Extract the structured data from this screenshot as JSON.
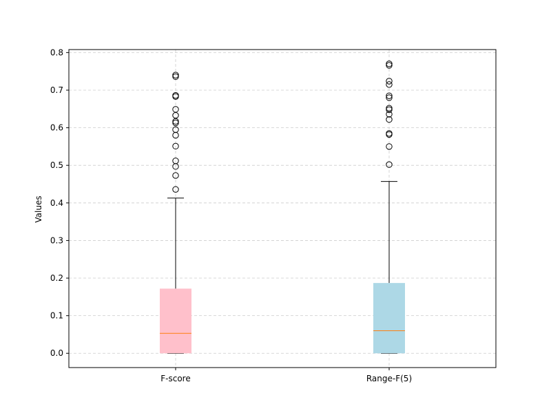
{
  "chart_data": {
    "type": "box",
    "title": "",
    "xlabel": "",
    "ylabel": "Values",
    "ylim": [
      -0.038,
      0.808
    ],
    "yticks": [
      0.0,
      0.1,
      0.2,
      0.3,
      0.4,
      0.5,
      0.6,
      0.7,
      0.8
    ],
    "ytick_labels": [
      "0.0",
      "0.1",
      "0.2",
      "0.3",
      "0.4",
      "0.5",
      "0.6",
      "0.7",
      "0.8"
    ],
    "grid": true,
    "grid_style": "dashed",
    "categories": [
      "F-score",
      "Range-F(5)"
    ],
    "series": [
      {
        "category": "F-score",
        "color": "#ffc0cb",
        "median_color": "#ff7f0e",
        "whisker_low": 0.0,
        "q1": 0.0,
        "median": 0.053,
        "q3": 0.172,
        "whisker_high": 0.413,
        "outliers": [
          0.436,
          0.473,
          0.497,
          0.512,
          0.551,
          0.58,
          0.595,
          0.613,
          0.617,
          0.633,
          0.649,
          0.683,
          0.686,
          0.736,
          0.74
        ]
      },
      {
        "category": "Range-F(5)",
        "color": "#add8e6",
        "median_color": "#ff7f0e",
        "whisker_low": 0.0,
        "q1": 0.0,
        "median": 0.06,
        "q3": 0.187,
        "whisker_high": 0.457,
        "outliers": [
          0.502,
          0.55,
          0.582,
          0.585,
          0.622,
          0.636,
          0.648,
          0.652,
          0.68,
          0.685,
          0.715,
          0.724,
          0.766,
          0.77
        ]
      }
    ]
  }
}
